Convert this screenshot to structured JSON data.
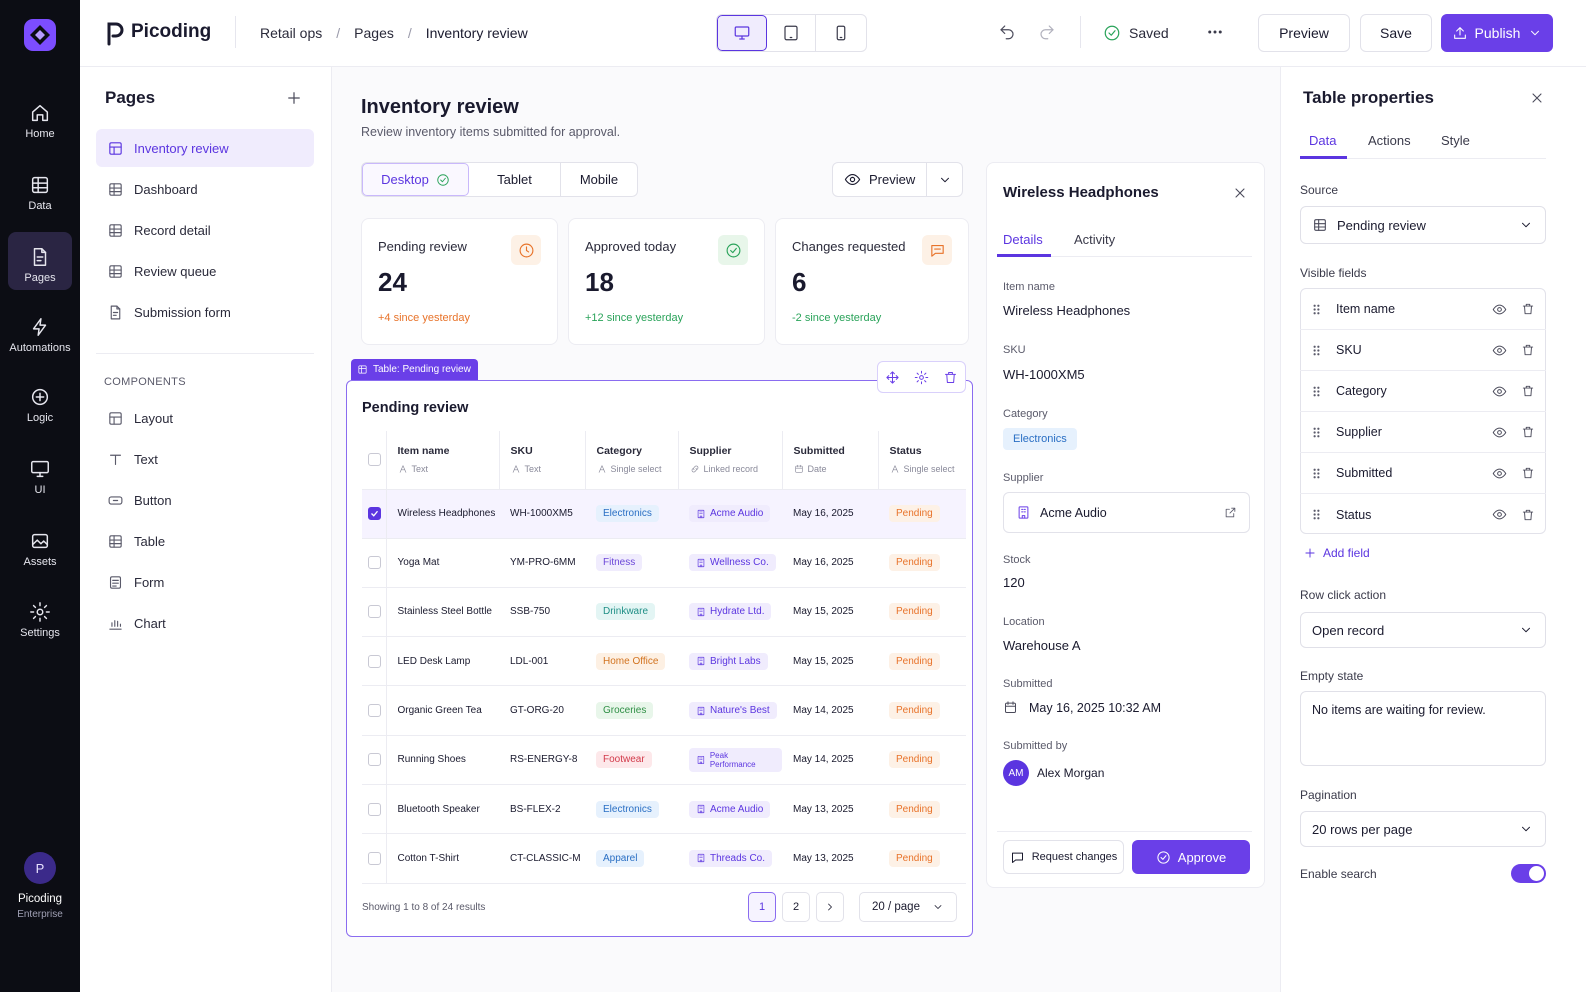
{
  "app": {
    "name": "Picoding",
    "workspace": "Picoding",
    "plan": "Enterprise",
    "avatar_initial": "P"
  },
  "rail": [
    {
      "label": "Home",
      "icon": "home-icon"
    },
    {
      "label": "Data",
      "icon": "table-icon"
    },
    {
      "label": "Pages",
      "icon": "page-icon",
      "active": true
    },
    {
      "label": "Automations",
      "icon": "bolt-icon"
    },
    {
      "label": "Logic",
      "icon": "logic-icon"
    },
    {
      "label": "UI",
      "icon": "monitor-icon"
    },
    {
      "label": "Assets",
      "icon": "image-icon"
    },
    {
      "label": "Settings",
      "icon": "gear-icon"
    }
  ],
  "breadcrumb": [
    "Retail ops",
    "Pages",
    "Inventory review"
  ],
  "toolbar": {
    "saved": "Saved",
    "preview": "Preview",
    "save": "Save",
    "publish": "Publish"
  },
  "pages_panel": {
    "title": "Pages",
    "pages": [
      "Inventory review",
      "Dashboard",
      "Record detail",
      "Review queue",
      "Submission form"
    ],
    "components_title": "COMPONENTS",
    "components": [
      "Layout",
      "Text",
      "Button",
      "Table",
      "Form",
      "Chart"
    ]
  },
  "page": {
    "title": "Inventory review",
    "subtitle": "Review inventory items submitted for approval.",
    "device_tabs": [
      "Desktop",
      "Tablet",
      "Mobile"
    ],
    "preview": "Preview"
  },
  "stats": [
    {
      "label": "Pending review",
      "value": "24",
      "delta": "+4 since yesterday",
      "color": "#e8732a"
    },
    {
      "label": "Approved today",
      "value": "18",
      "delta": "+12 since yesterday",
      "color": "#2aa35a"
    },
    {
      "label": "Changes requested",
      "value": "6",
      "delta": "-2 since yesterday",
      "color": "#2aa35a"
    }
  ],
  "table": {
    "badge": "Table: Pending review",
    "title": "Pending review",
    "columns": [
      {
        "name": "Item name",
        "type": "Text"
      },
      {
        "name": "SKU",
        "type": "Text"
      },
      {
        "name": "Category",
        "type": "Single select"
      },
      {
        "name": "Supplier",
        "type": "Linked record"
      },
      {
        "name": "Submitted",
        "type": "Date"
      },
      {
        "name": "Status",
        "type": "Single select"
      }
    ],
    "rows": [
      {
        "name": "Wireless Headphones",
        "sku": "WH-1000XM5",
        "category": "Electronics",
        "supplier": "Acme Audio",
        "date": "May 16, 2025",
        "status": "Pending",
        "checked": true
      },
      {
        "name": "Yoga Mat",
        "sku": "YM-PRO-6MM",
        "category": "Fitness",
        "supplier": "Wellness Co.",
        "date": "May 16, 2025",
        "status": "Pending"
      },
      {
        "name": "Stainless Steel Bottle",
        "sku": "SSB-750",
        "category": "Drinkware",
        "supplier": "Hydrate Ltd.",
        "date": "May 15, 2025",
        "status": "Pending"
      },
      {
        "name": "LED Desk Lamp",
        "sku": "LDL-001",
        "category": "Home Office",
        "supplier": "Bright Labs",
        "date": "May 15, 2025",
        "status": "Pending"
      },
      {
        "name": "Organic Green Tea",
        "sku": "GT-ORG-20",
        "category": "Groceries",
        "supplier": "Nature's Best",
        "date": "May 14, 2025",
        "status": "Pending"
      },
      {
        "name": "Running Shoes",
        "sku": "RS-ENERGY-8",
        "category": "Footwear",
        "supplier": "Peak Performance",
        "date": "May 14, 2025",
        "status": "Pending"
      },
      {
        "name": "Bluetooth Speaker",
        "sku": "BS-FLEX-2",
        "category": "Electronics",
        "supplier": "Acme Audio",
        "date": "May 13, 2025",
        "status": "Pending"
      },
      {
        "name": "Cotton T-Shirt",
        "sku": "CT-CLASSIC-M",
        "category": "Apparel",
        "supplier": "Threads Co.",
        "date": "May 13, 2025",
        "status": "Pending"
      }
    ],
    "footer": "Showing 1 to 8 of 24 results",
    "pages": [
      "1",
      "2"
    ],
    "page_size": "20 / page"
  },
  "category_colors": {
    "Electronics": [
      "#e6f1fd",
      "#2a6fc4"
    ],
    "Fitness": [
      "#f0ecfd",
      "#6b46d8"
    ],
    "Drinkware": [
      "#e3f5f4",
      "#1f8f86"
    ],
    "Home Office": [
      "#fdf0e3",
      "#d2731f"
    ],
    "Groceries": [
      "#e8f6ea",
      "#2f8f45"
    ],
    "Footwear": [
      "#fde8ea",
      "#d23a4a"
    ],
    "Apparel": [
      "#e6f1fd",
      "#2a6fc4"
    ]
  },
  "detail": {
    "title": "Wireless Headphones",
    "tabs": [
      "Details",
      "Activity"
    ],
    "fields": {
      "item_name_label": "Item name",
      "item_name": "Wireless Headphones",
      "sku_label": "SKU",
      "sku": "WH-1000XM5",
      "category_label": "Category",
      "category": "Electronics",
      "supplier_label": "Supplier",
      "supplier": "Acme Audio",
      "stock_label": "Stock",
      "stock": "120",
      "location_label": "Location",
      "location": "Warehouse A",
      "submitted_label": "Submitted",
      "submitted": "May 16, 2025 10:32 AM",
      "submitted_by_label": "Submitted by",
      "submitted_by": "Alex Morgan",
      "submitted_by_initials": "AM"
    },
    "request_changes": "Request changes",
    "approve": "Approve"
  },
  "properties": {
    "title": "Table properties",
    "tabs": [
      "Data",
      "Actions",
      "Style"
    ],
    "source_label": "Source",
    "source": "Pending review",
    "visible_fields_label": "Visible fields",
    "visible_fields": [
      "Item name",
      "SKU",
      "Category",
      "Supplier",
      "Submitted",
      "Status"
    ],
    "add_field": "Add field",
    "row_click_label": "Row click action",
    "row_click": "Open record",
    "empty_state_label": "Empty state",
    "empty_state": "No items are waiting for review.",
    "pagination_label": "Pagination",
    "pagination": "20 rows per page",
    "enable_search_label": "Enable search",
    "enable_search": true
  },
  "accent": "#5b35e0"
}
